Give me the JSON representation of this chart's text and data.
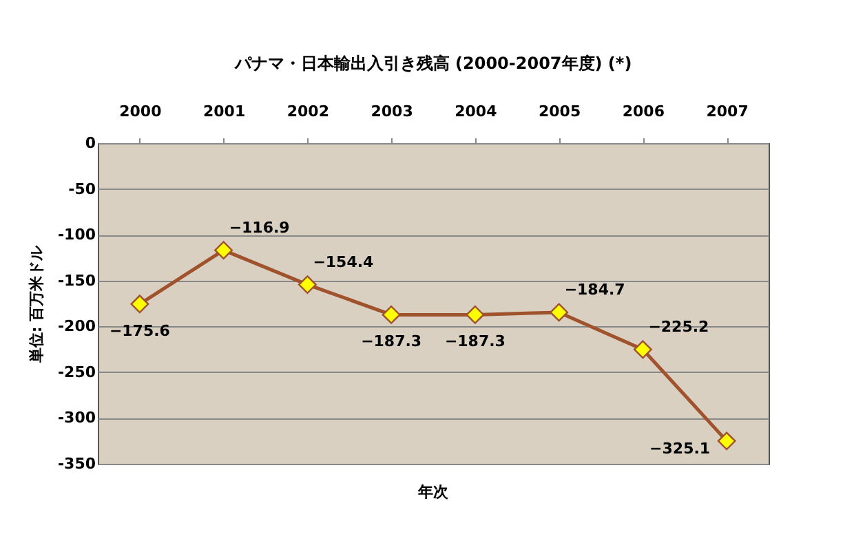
{
  "chart_data": {
    "type": "line",
    "title": "パナマ・日本輸出入引き残高 (2000-2007年度) (*)",
    "xlabel": "年次",
    "ylabel": "単位: 百万米ドル",
    "categories": [
      "2000",
      "2001",
      "2002",
      "2003",
      "2004",
      "2005",
      "2006",
      "2007"
    ],
    "series": [
      {
        "color": "#a0522d",
        "values": [
          -175.6,
          -116.9,
          -154.4,
          -187.3,
          -187.3,
          -184.7,
          -225.2,
          -325.1
        ]
      }
    ],
    "ylim": [
      -350,
      0
    ],
    "yticks": [
      0,
      -50,
      -100,
      -150,
      -200,
      -250,
      -300,
      -350
    ],
    "grid": "y",
    "legend": false,
    "marker": "diamond",
    "line_style": "solid",
    "data_labels": true
  }
}
